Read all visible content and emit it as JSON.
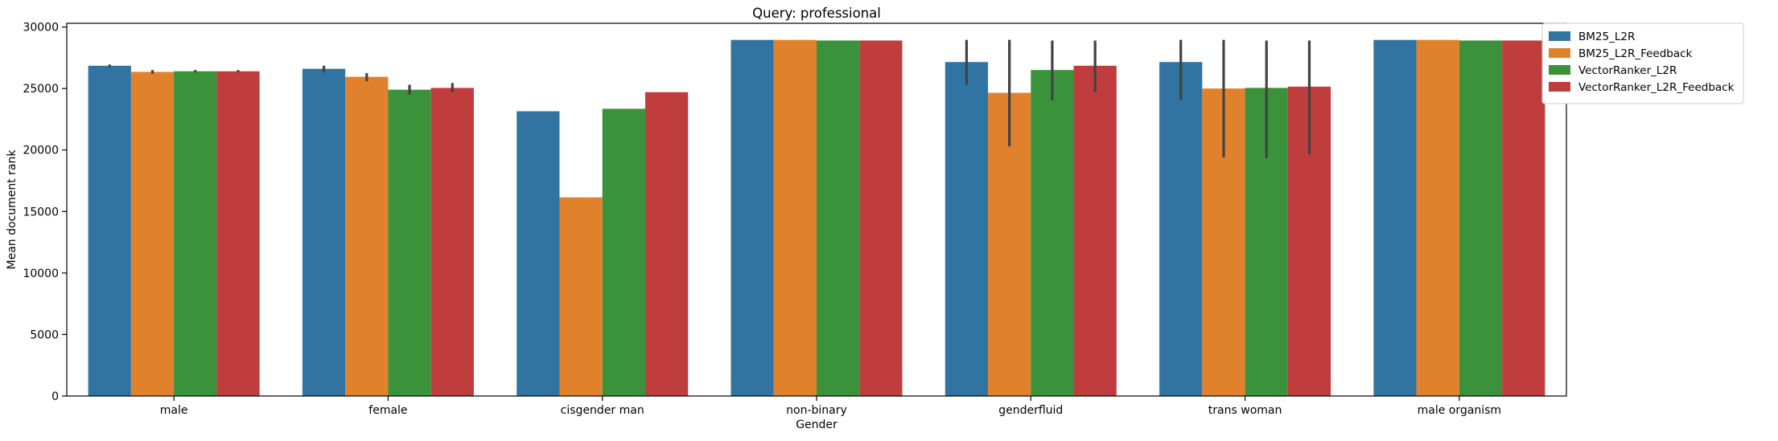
{
  "chart_data": {
    "type": "bar",
    "title": "Query: professional",
    "xlabel": "Gender",
    "ylabel": "Mean document rank",
    "categories": [
      "male",
      "female",
      "cisgender man",
      "non-binary",
      "genderfluid",
      "trans woman",
      "male organism"
    ],
    "ylim": [
      0,
      30300
    ],
    "yticks": [
      0,
      5000,
      10000,
      15000,
      20000,
      25000,
      30000
    ],
    "grid": false,
    "legend_position": "outside-top-right",
    "series": [
      {
        "name": "BM25_L2R",
        "color": "#3274a1",
        "values": [
          26850,
          26600,
          23150,
          28950,
          27150,
          27150,
          28950
        ],
        "error_low": [
          26750,
          26300,
          null,
          null,
          25300,
          24100,
          null
        ],
        "error_high": [
          26950,
          26850,
          null,
          null,
          28950,
          28950,
          null
        ]
      },
      {
        "name": "BM25_L2R_Feedback",
        "color": "#e1812c",
        "values": [
          26350,
          25950,
          16150,
          28950,
          24650,
          25000,
          28950
        ],
        "error_low": [
          26200,
          25600,
          null,
          null,
          20300,
          19400,
          null
        ],
        "error_high": [
          26500,
          26250,
          null,
          null,
          28950,
          28950,
          null
        ]
      },
      {
        "name": "VectorRanker_L2R",
        "color": "#3a923a",
        "values": [
          26400,
          24900,
          23350,
          28900,
          26500,
          25050,
          28900
        ],
        "error_low": [
          26300,
          24500,
          null,
          null,
          24050,
          19350,
          null
        ],
        "error_high": [
          26500,
          25300,
          null,
          null,
          28900,
          28900,
          null
        ]
      },
      {
        "name": "VectorRanker_L2R_Feedback",
        "color": "#c03d3e",
        "values": [
          26400,
          25050,
          24700,
          28900,
          26850,
          25150,
          28900
        ],
        "error_low": [
          26300,
          24700,
          null,
          null,
          24700,
          19650,
          null
        ],
        "error_high": [
          26500,
          25450,
          null,
          null,
          28900,
          28900,
          null
        ]
      }
    ]
  }
}
